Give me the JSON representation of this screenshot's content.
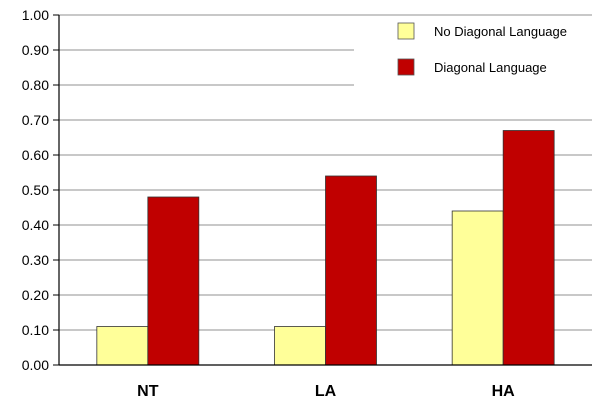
{
  "chart_data": {
    "type": "bar",
    "title": "",
    "xlabel": "",
    "ylabel": "",
    "categories": [
      "NT",
      "LA",
      "HA"
    ],
    "series": [
      {
        "name": "No Diagonal Language",
        "color": "#ffff99",
        "values": [
          0.11,
          0.11,
          0.44
        ]
      },
      {
        "name": "Diagonal Language",
        "color": "#c00000",
        "values": [
          0.48,
          0.54,
          0.67
        ]
      }
    ],
    "ylim": [
      0,
      1.0
    ],
    "yticks": [
      "0.00",
      "0.10",
      "0.20",
      "0.30",
      "0.40",
      "0.50",
      "0.60",
      "0.70",
      "0.80",
      "0.90",
      "1.00"
    ],
    "grid": true,
    "legend_position": "top-right"
  }
}
